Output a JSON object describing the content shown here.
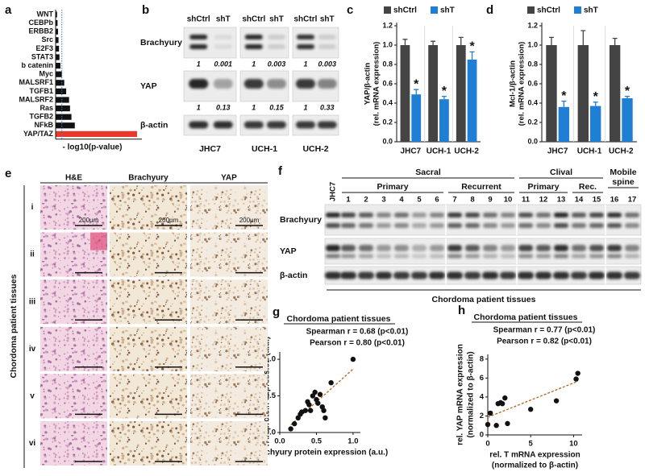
{
  "panel_labels": [
    "a",
    "b",
    "c",
    "d",
    "e",
    "f",
    "g",
    "h"
  ],
  "chart_data": [
    {
      "type": "bar",
      "orientation": "horizontal",
      "categories": [
        "WNT",
        "CEBPb",
        "ERBB2",
        "Src",
        "E2F3",
        "STAT3",
        "b catenin",
        "Myc",
        "MALSRF1",
        "TGFB1",
        "MALSRF2",
        "Ras",
        "TGFB2",
        "NFkB",
        "YAP/TAZ"
      ],
      "values": [
        0.3,
        0.4,
        0.5,
        0.6,
        0.7,
        0.8,
        1.0,
        1.3,
        1.8,
        2.2,
        2.8,
        3.0,
        3.3,
        4.0,
        17
      ],
      "colors": [
        "#111111",
        "#111111",
        "#111111",
        "#111111",
        "#111111",
        "#111111",
        "#111111",
        "#111111",
        "#111111",
        "#111111",
        "#111111",
        "#111111",
        "#111111",
        "#111111",
        "#e8392b"
      ],
      "xlabel": "- log10(p-value)",
      "xlim": [
        0,
        18
      ],
      "reference_line": 1.3,
      "reference_color": "#3a7fd0"
    },
    {
      "type": "bar",
      "categories": [
        "JHC7",
        "UCH-1",
        "UCH-2"
      ],
      "series": [
        {
          "name": "shCtrl",
          "color": "#444444",
          "values": [
            1.0,
            1.0,
            1.0
          ],
          "errors": [
            0.06,
            0.04,
            0.08
          ]
        },
        {
          "name": "shT",
          "color": "#1f7fd4",
          "values": [
            0.49,
            0.44,
            0.85
          ],
          "errors": [
            0.05,
            0.03,
            0.08
          ],
          "annotations": [
            "*",
            "*",
            "*"
          ]
        }
      ],
      "ylabel": [
        "YAP/β-actin",
        "(rel. mRNA expression)"
      ],
      "ylim": [
        0,
        1.2
      ],
      "yticks": [
        {
          "value": 0,
          "label": "0.0"
        },
        0.2,
        0.4,
        0.6,
        0.8,
        {
          "value": 1,
          "label": "1.0"
        },
        1.2
      ]
    },
    {
      "type": "bar",
      "categories": [
        "JHC7",
        "UCH-1",
        "UCH-2"
      ],
      "series": [
        {
          "name": "shCtrl",
          "color": "#444444",
          "values": [
            1.0,
            1.0,
            1.0
          ],
          "errors": [
            0.08,
            0.15,
            0.07
          ]
        },
        {
          "name": "shT",
          "color": "#1f7fd4",
          "values": [
            0.36,
            0.37,
            0.45
          ],
          "errors": [
            0.06,
            0.04,
            0.02
          ],
          "annotations": [
            "*",
            "*",
            "*"
          ]
        }
      ],
      "ylabel": [
        "Mcl-1/β-actin",
        "(rel. mRNA expression)"
      ],
      "ylim": [
        0,
        1.2
      ],
      "yticks": [
        {
          "value": 0,
          "label": "0.0"
        },
        0.2,
        0.4,
        0.6,
        0.8,
        {
          "value": 1,
          "label": "1.0"
        },
        1.2
      ]
    },
    {
      "type": "scatter",
      "title": "Chordoma patient tissues",
      "subtitle": [
        "Spearman r = 0.68 (p<0.01)",
        "Pearson r = 0.80 (p<0.01)"
      ],
      "x": [
        0.15,
        0.2,
        0.25,
        0.28,
        0.3,
        0.35,
        0.38,
        0.4,
        0.42,
        0.45,
        0.48,
        0.5,
        0.52,
        0.55,
        0.58,
        0.6,
        0.62,
        0.7,
        1.0
      ],
      "values": [
        0.05,
        0.12,
        0.2,
        0.25,
        0.28,
        0.3,
        0.42,
        0.38,
        0.3,
        0.5,
        0.55,
        0.45,
        0.4,
        0.52,
        0.35,
        0.3,
        0.2,
        0.68,
        1.0
      ],
      "xlim": [
        0,
        1.1
      ],
      "ylim": [
        0,
        1.1
      ],
      "xticks": [
        {
          "value": 0,
          "label": "0.0"
        },
        0.5,
        {
          "value": 1,
          "label": "1.0"
        }
      ],
      "yticks": [
        {
          "value": 0,
          "label": "0.0"
        },
        0.5,
        {
          "value": 1,
          "label": "1.0"
        }
      ],
      "xlabel": [
        "Brachyury protein expression (a.u.)"
      ],
      "ylabel": [
        "YAP protein expression (a.u.)"
      ],
      "color": "#111111",
      "trendline_color": "#b5651d"
    },
    {
      "type": "scatter",
      "title": "Chordoma patient tissues",
      "subtitle": [
        "Spearman r = 0.77 (p<0.01)",
        "Pearson r = 0.82 (p<0.01)"
      ],
      "x": [
        0,
        0.3,
        1,
        1.2,
        1.5,
        1.7,
        2,
        2.3,
        5,
        8,
        10.3,
        10.5
      ],
      "values": [
        1.1,
        2.3,
        1.0,
        3.3,
        3.4,
        3.3,
        3.9,
        1.2,
        2.7,
        3.6,
        5.9,
        6.5
      ],
      "xlim": [
        0,
        11
      ],
      "ylim": [
        0,
        8.5
      ],
      "xticks": [
        0,
        5,
        10
      ],
      "yticks": [
        0,
        2,
        4,
        6,
        8
      ],
      "xlabel": [
        "rel. T mRNA expression",
        "(normalized to β-actin)"
      ],
      "ylabel": [
        "rel. YAP mRNA expression",
        "(normalized to β-actin)"
      ],
      "color": "#111111",
      "trendline_color": "#b5651d"
    }
  ],
  "blot_b": {
    "conditions": [
      "shCtrl",
      "shT",
      "shCtrl",
      "shT",
      "shCtrl",
      "shT"
    ],
    "proteins": [
      "Brachyury",
      "YAP",
      "β-actin"
    ],
    "quantification": [
      [
        1,
        0.001,
        1,
        0.003,
        1,
        0.003
      ],
      [
        1,
        0.13,
        1,
        0.15,
        1,
        0.33
      ]
    ],
    "cell_lines": [
      "JHC7",
      "UCH-1",
      "UCH-2"
    ]
  },
  "images_e": {
    "columns": [
      "H&E",
      "Brachyury",
      "YAP"
    ],
    "rows": [
      "i",
      "ii",
      "iii",
      "iv",
      "v",
      "vi"
    ],
    "label": "Chordoma patient tissues",
    "scale_bar": "200µm"
  },
  "blot_f": {
    "top_groups": [
      "Sacral",
      "Clival"
    ],
    "mobile_spine": [
      "Mobile",
      "spine"
    ],
    "sub_groups": [
      "Primary",
      "Recurrent",
      "Primary",
      "Rec."
    ],
    "lanes": [
      "JHC7",
      "1",
      "2",
      "3",
      "4",
      "5",
      "6",
      "7",
      "8",
      "9",
      "10",
      "11",
      "12",
      "13",
      "14",
      "15",
      "16",
      "17"
    ],
    "proteins": [
      "Brachyury",
      "YAP",
      "β-actin"
    ],
    "footer": "Chordoma patient tissues"
  }
}
